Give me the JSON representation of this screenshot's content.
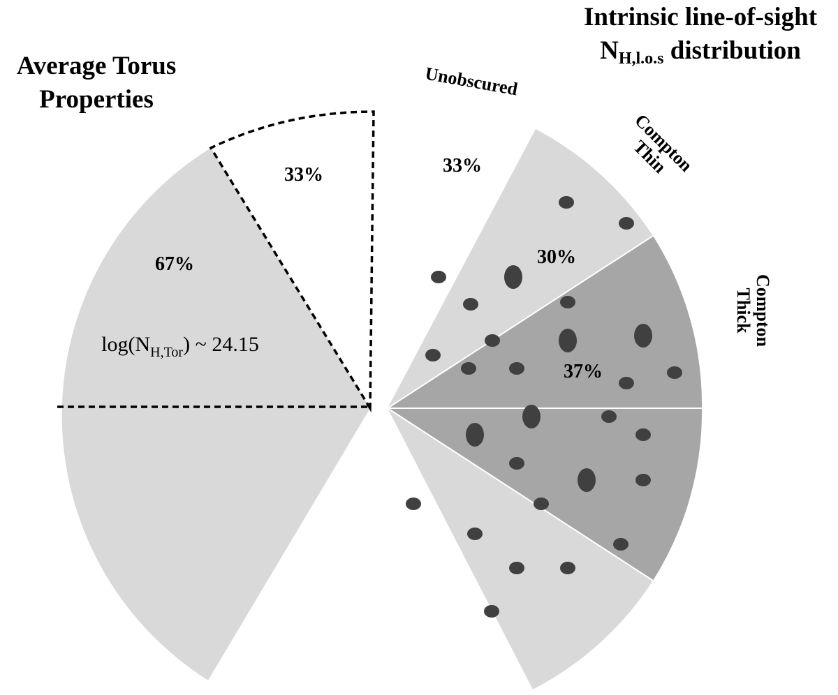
{
  "left_panel": {
    "title_line1": "Average Torus",
    "title_line2": "Properties",
    "covering_obscured": "67%",
    "covering_open": "33%",
    "column_density_prefix": "log(N",
    "column_density_subscript": "H,Tor",
    "column_density_suffix": ") ~ 24.15"
  },
  "right_panel": {
    "title_line1": "Intrinsic line-of-sight",
    "title_prefix": "N",
    "title_subscript": "H,l.o.s",
    "title_suffix": " distribution",
    "unobscured_label": "Unobscured",
    "unobscured_pct": "33%",
    "compton_thin_line1": "Compton",
    "compton_thin_line2": "Thin",
    "compton_thin_pct": "30%",
    "compton_thick_line1": "Compton",
    "compton_thick_line2": "Thick",
    "compton_thick_pct": "37%"
  },
  "colors": {
    "torus_fill": "#d9d9d9",
    "compton_thin_fill": "#d9d9d9",
    "compton_thick_fill": "#a6a6a6",
    "cloud_fill": "#404040",
    "outline": "#000000"
  }
}
